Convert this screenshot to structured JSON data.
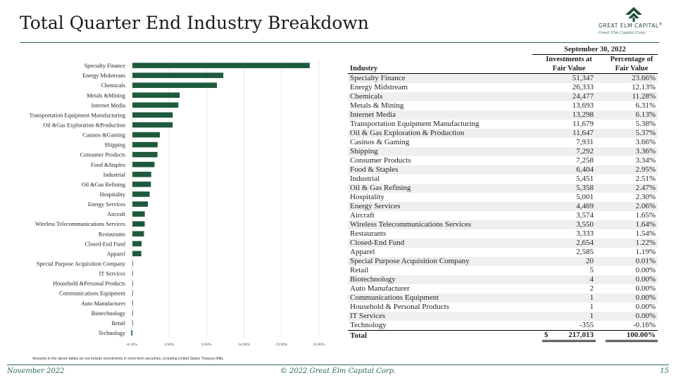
{
  "header": {
    "title": "Total Quarter End Industry Breakdown"
  },
  "logo": {
    "name": "GREAT ELM CAPITAL",
    "registered": "®",
    "tagline": "Great Elm Capital Corp.",
    "color": "#1e4d36"
  },
  "table": {
    "period": "September 30, 2022",
    "col_industry": "Industry",
    "col_investments": "Investments at Fair Value",
    "col_pct": "Percentage of Fair Value",
    "rows": [
      {
        "industry": "Specialty Finance",
        "value": "51,347",
        "pct": "23.66%"
      },
      {
        "industry": "Energy Midstream",
        "value": "26,333",
        "pct": "12.13%"
      },
      {
        "industry": "Chemicals",
        "value": "24,477",
        "pct": "11.28%"
      },
      {
        "industry": "Metals & Mining",
        "value": "13,693",
        "pct": "6.31%"
      },
      {
        "industry": "Internet Media",
        "value": "13,298",
        "pct": "6.13%"
      },
      {
        "industry": "Transportation Equipment Manufacturing",
        "value": "11,679",
        "pct": "5.38%"
      },
      {
        "industry": "Oil & Gas Exploration & Production",
        "value": "11,647",
        "pct": "5.37%"
      },
      {
        "industry": "Casinos & Gaming",
        "value": "7,931",
        "pct": "3.66%"
      },
      {
        "industry": "Shipping",
        "value": "7,292",
        "pct": "3.36%"
      },
      {
        "industry": "Consumer Products",
        "value": "7,258",
        "pct": "3.34%"
      },
      {
        "industry": "Food & Staples",
        "value": "6,404",
        "pct": "2.95%"
      },
      {
        "industry": "Industrial",
        "value": "5,451",
        "pct": "2.51%"
      },
      {
        "industry": "Oil & Gas Refining",
        "value": "5,358",
        "pct": "2.47%"
      },
      {
        "industry": "Hospitality",
        "value": "5,001",
        "pct": "2.30%"
      },
      {
        "industry": "Energy Services",
        "value": "4,469",
        "pct": "2.06%"
      },
      {
        "industry": "Aircraft",
        "value": "3,574",
        "pct": "1.65%"
      },
      {
        "industry": "Wireless Telecommunications Services",
        "value": "3,550",
        "pct": "1.64%"
      },
      {
        "industry": "Restaurants",
        "value": "3,333",
        "pct": "1.54%"
      },
      {
        "industry": "Closed-End Fund",
        "value": "2,654",
        "pct": "1.22%"
      },
      {
        "industry": "Apparel",
        "value": "2,585",
        "pct": "1.19%"
      },
      {
        "industry": "Special Purpose Acquisition Company",
        "value": "20",
        "pct": "0.01%"
      },
      {
        "industry": "Retail",
        "value": "5",
        "pct": "0.00%"
      },
      {
        "industry": "Biotechnology",
        "value": "4",
        "pct": "0.00%"
      },
      {
        "industry": "Auto Manufacturer",
        "value": "2",
        "pct": "0.00%"
      },
      {
        "industry": "Communications Equipment",
        "value": "1",
        "pct": "0.00%"
      },
      {
        "industry": "Household & Personal Products",
        "value": "1",
        "pct": "0.00%"
      },
      {
        "industry": "IT Services",
        "value": "1",
        "pct": "0.00%"
      },
      {
        "industry": "Technology",
        "value": "-355",
        "pct": "-0.16%"
      }
    ],
    "total": {
      "label": "Total",
      "currency": "$",
      "value": "217,013",
      "pct": "100.00%"
    }
  },
  "chart_data": {
    "type": "bar",
    "orientation": "horizontal",
    "bar_color": "#1e5a3c",
    "categories": [
      "Specialty Finance",
      "Energy Midstream",
      "Chemicals",
      "Metals &Mining",
      "Internet Media",
      "Transportation Equipment Manufacturing",
      "Oil &Gas Exploration &Production",
      "Casinos &Gaming",
      "Shipping",
      "Consumer Products",
      "Food &Staples",
      "Industrial",
      "Oil &Gas Refining",
      "Hospitality",
      "Energy Services",
      "Aircraft",
      "Wireless Telecommunications Services",
      "Restaurants",
      "Closed-End Fund",
      "Apparel",
      "Special Purpose Acquisition Company",
      "IT Services",
      "Household &Personal Products",
      "Communications Equipment",
      "Auto Manufacturer",
      "Biotechnology",
      "Retail",
      "Technology"
    ],
    "values": [
      23.66,
      12.13,
      11.28,
      6.31,
      6.13,
      5.38,
      5.37,
      3.66,
      3.36,
      3.34,
      2.95,
      2.51,
      2.47,
      2.3,
      2.06,
      1.65,
      1.64,
      1.54,
      1.22,
      1.19,
      0.01,
      0.0,
      0.0,
      0.0,
      0.0,
      0.0,
      0.0,
      -0.16
    ],
    "xlim": [
      -0.1,
      24.9
    ],
    "xticks": [
      -0.1,
      4.9,
      9.9,
      14.9,
      19.9,
      24.9
    ],
    "xtick_labels": [
      "-0.10%",
      "4.90%",
      "9.90%",
      "14.90%",
      "19.90%",
      "24.90%"
    ],
    "grid": true
  },
  "footnote": "Amounts in the above tables do not include investments in short-term securities, including United States Treasury Bills.",
  "footer": {
    "date": "November 2022",
    "copyright": "© 2022 Great Elm Capital Corp.",
    "page": "15"
  }
}
